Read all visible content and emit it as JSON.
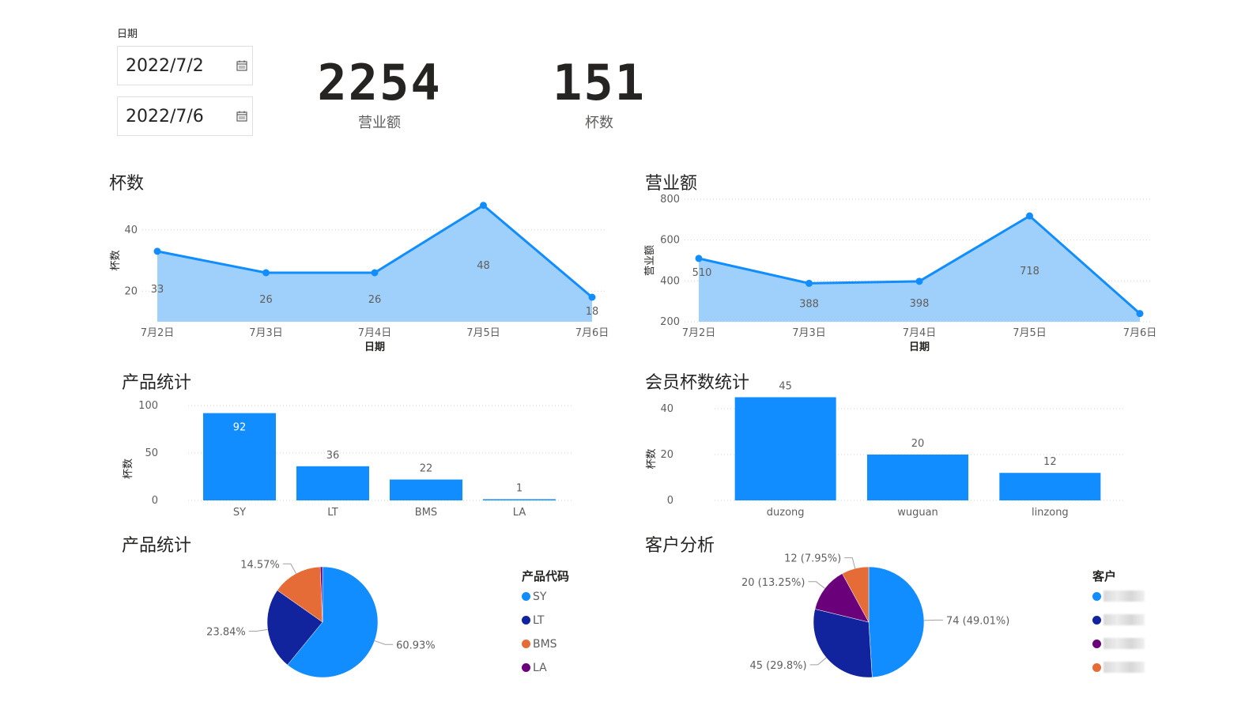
{
  "date_filter": {
    "label": "日期",
    "start": "2022/7/2",
    "end": "2022/7/6"
  },
  "kpis": [
    {
      "value": "2254",
      "label": "营业额"
    },
    {
      "value": "151",
      "label": "杯数"
    }
  ],
  "colors": {
    "primary": "#118dff",
    "area_fill": "#9fd0fb",
    "dark_blue": "#12239e",
    "orange": "#e66c37",
    "purple": "#6b007b"
  },
  "chart_data": [
    {
      "type": "area",
      "title": "杯数",
      "xlabel": "日期",
      "ylabel": "杯数",
      "categories": [
        "7月2日",
        "7月3日",
        "7月4日",
        "7月5日",
        "7月6日"
      ],
      "values": [
        33,
        26,
        26,
        48,
        18
      ],
      "yticks": [
        20,
        40
      ],
      "ylim": [
        10,
        50
      ],
      "grid": true
    },
    {
      "type": "area",
      "title": "营业额",
      "xlabel": "日期",
      "ylabel": "营业额",
      "categories": [
        "7月2日",
        "7月3日",
        "7月4日",
        "7月5日",
        "7月6日"
      ],
      "values": [
        510,
        388,
        398,
        718,
        240
      ],
      "data_labels": [
        "510",
        "388",
        "398",
        "718",
        ""
      ],
      "yticks": [
        200,
        400,
        600,
        800
      ],
      "ylim": [
        200,
        800
      ],
      "grid": true
    },
    {
      "type": "bar",
      "title": "产品统计",
      "ylabel": "杯数",
      "categories": [
        "SY",
        "LT",
        "BMS",
        "LA"
      ],
      "values": [
        92,
        36,
        22,
        1
      ],
      "yticks": [
        0,
        50,
        100
      ],
      "ylim": [
        0,
        100
      ],
      "grid": true
    },
    {
      "type": "bar",
      "title": "会员杯数统计",
      "ylabel": "杯数",
      "categories": [
        "duzong",
        "wuguan",
        "linzong"
      ],
      "values": [
        45,
        20,
        12
      ],
      "yticks": [
        0,
        20,
        40
      ],
      "ylim": [
        0,
        50
      ],
      "grid": true
    },
    {
      "type": "pie",
      "title": "产品统计",
      "legend_title": "产品代码",
      "legend_position": "right",
      "slices": [
        {
          "name": "SY",
          "value": 60.93,
          "label": "60.93%"
        },
        {
          "name": "LT",
          "value": 23.84,
          "label": "23.84%"
        },
        {
          "name": "BMS",
          "value": 14.57,
          "label": "14.57%"
        },
        {
          "name": "LA",
          "value": 0.66,
          "label": ""
        }
      ]
    },
    {
      "type": "pie",
      "title": "客户分析",
      "legend_title": "客户",
      "legend_position": "right",
      "slices": [
        {
          "name": "",
          "value": 74,
          "label": "74 (49.01%)"
        },
        {
          "name": "",
          "value": 45,
          "label": "45 (29.8%)"
        },
        {
          "name": "",
          "value": 20,
          "label": "20 (13.25%)"
        },
        {
          "name": "",
          "value": 12,
          "label": "12 (7.95%)"
        }
      ]
    }
  ]
}
